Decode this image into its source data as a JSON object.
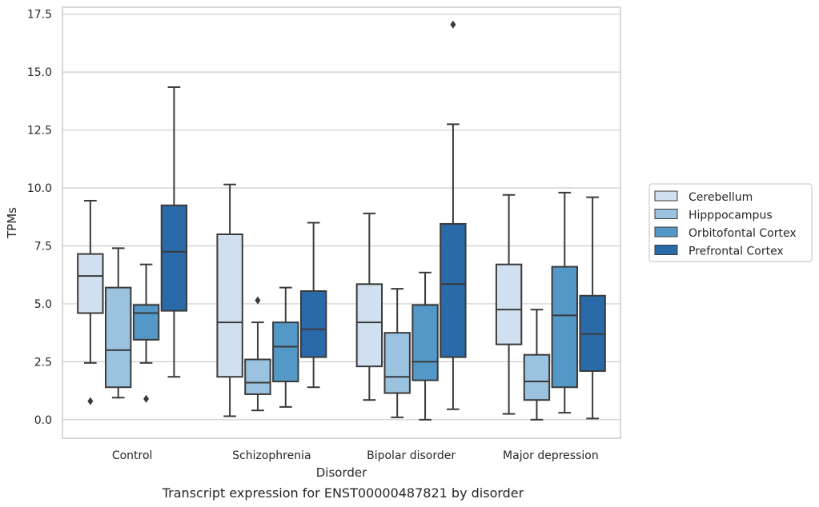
{
  "caption": "Transcript expression for ENST00000487821 by disorder",
  "chart_data": {
    "type": "box",
    "xlabel": "Disorder",
    "ylabel": "TPMs",
    "ylim": [
      -0.8,
      17.8
    ],
    "yticks": [
      0.0,
      2.5,
      5.0,
      7.5,
      10.0,
      12.5,
      15.0,
      17.5
    ],
    "ytick_labels": [
      "0.0",
      "2.5",
      "5.0",
      "7.5",
      "10.0",
      "12.5",
      "15.0",
      "17.5"
    ],
    "categories": [
      "Control",
      "Schizophrenia",
      "Bipolar disorder",
      "Major depression"
    ],
    "grid": "horizontal",
    "legend_position": "right",
    "series": [
      {
        "name": "Cerebellum",
        "color": "#d1e0f0",
        "boxes": [
          {
            "whislo": 2.45,
            "q1": 4.6,
            "med": 6.2,
            "q3": 7.15,
            "whishi": 9.45,
            "fliers": [
              0.8
            ]
          },
          {
            "whislo": 0.15,
            "q1": 1.85,
            "med": 4.2,
            "q3": 8.0,
            "whishi": 10.15,
            "fliers": []
          },
          {
            "whislo": 0.85,
            "q1": 2.3,
            "med": 4.2,
            "q3": 5.85,
            "whishi": 8.9,
            "fliers": []
          },
          {
            "whislo": 0.25,
            "q1": 3.25,
            "med": 4.75,
            "q3": 6.7,
            "whishi": 9.7,
            "fliers": []
          }
        ]
      },
      {
        "name": "Hipppocampus",
        "color": "#9bc2df",
        "boxes": [
          {
            "whislo": 0.95,
            "q1": 1.4,
            "med": 3.0,
            "q3": 5.7,
            "whishi": 7.4,
            "fliers": []
          },
          {
            "whislo": 0.4,
            "q1": 1.1,
            "med": 1.6,
            "q3": 2.6,
            "whishi": 4.2,
            "fliers": [
              5.15
            ]
          },
          {
            "whislo": 0.1,
            "q1": 1.15,
            "med": 1.85,
            "q3": 3.75,
            "whishi": 5.65,
            "fliers": []
          },
          {
            "whislo": 0.0,
            "q1": 0.85,
            "med": 1.65,
            "q3": 2.8,
            "whishi": 4.75,
            "fliers": []
          }
        ]
      },
      {
        "name": "Orbitofontal Cortex",
        "color": "#5498c8",
        "boxes": [
          {
            "whislo": 2.45,
            "q1": 3.45,
            "med": 4.6,
            "q3": 4.95,
            "whishi": 6.7,
            "fliers": [
              0.9
            ]
          },
          {
            "whislo": 0.55,
            "q1": 1.65,
            "med": 3.15,
            "q3": 4.2,
            "whishi": 5.7,
            "fliers": []
          },
          {
            "whislo": 0.0,
            "q1": 1.7,
            "med": 2.5,
            "q3": 4.95,
            "whishi": 6.35,
            "fliers": []
          },
          {
            "whislo": 0.3,
            "q1": 1.4,
            "med": 4.5,
            "q3": 6.6,
            "whishi": 9.8,
            "fliers": []
          }
        ]
      },
      {
        "name": "Prefrontal Cortex",
        "color": "#2b6aa8",
        "boxes": [
          {
            "whislo": 1.85,
            "q1": 4.7,
            "med": 7.25,
            "q3": 9.25,
            "whishi": 14.35,
            "fliers": []
          },
          {
            "whislo": 1.4,
            "q1": 2.7,
            "med": 3.9,
            "q3": 5.55,
            "whishi": 8.5,
            "fliers": []
          },
          {
            "whislo": 0.45,
            "q1": 2.7,
            "med": 5.85,
            "q3": 8.45,
            "whishi": 12.75,
            "fliers": [
              17.05
            ]
          },
          {
            "whislo": 0.05,
            "q1": 2.1,
            "med": 3.7,
            "q3": 5.35,
            "whishi": 9.6,
            "fliers": []
          }
        ]
      }
    ]
  }
}
